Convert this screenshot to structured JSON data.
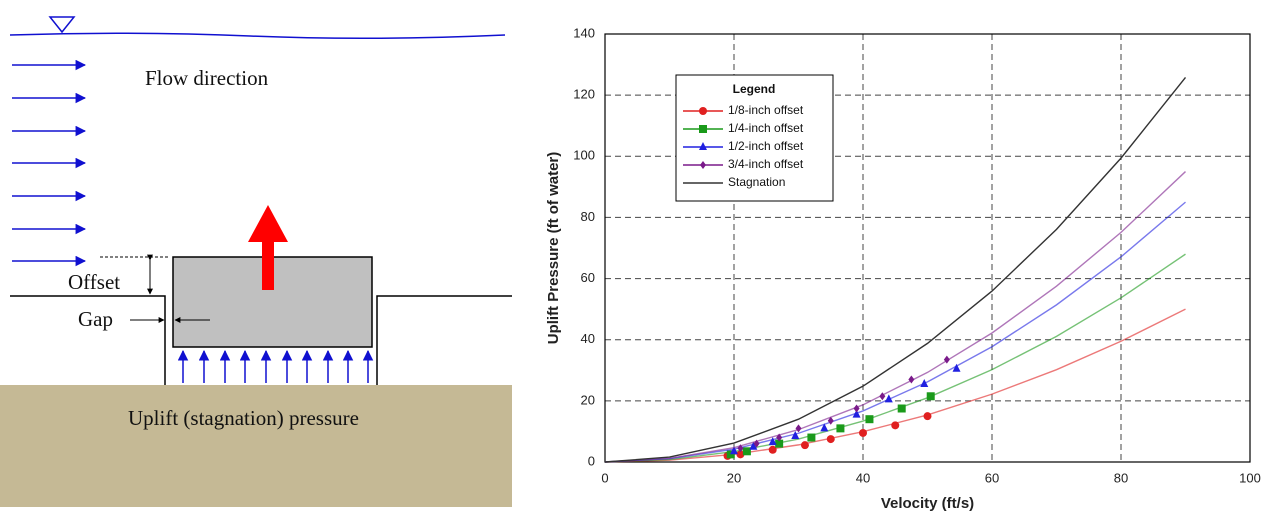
{
  "diagram": {
    "labels": {
      "flow": "Flow direction",
      "offset": "Offset",
      "gap": "Gap",
      "pressure": "Uplift (stagnation) pressure"
    }
  },
  "chart_data": {
    "type": "line",
    "x_label": "Velocity (ft/s)",
    "y_label": "Uplift Pressure (ft of water)",
    "legend_title": "Legend",
    "legend": "upper left",
    "grid": true,
    "xlim": [
      0,
      100
    ],
    "xticks": [
      0,
      20,
      40,
      60,
      80,
      100
    ],
    "ylim": [
      0,
      140
    ],
    "yticks": [
      0,
      20,
      40,
      60,
      80,
      100,
      120,
      140
    ],
    "x": [
      0,
      10,
      20,
      30,
      40,
      50,
      60,
      70,
      80,
      90
    ],
    "series": [
      {
        "name": "1/8-inch offset",
        "color": "#e02020",
        "marker": "circle",
        "values": [
          0,
          0.6,
          2.5,
          5.6,
          9.9,
          15.4,
          22.2,
          30.2,
          39.5,
          50
        ],
        "points": {
          "x": [
            19,
            21,
            26,
            31,
            35,
            40,
            45,
            50
          ],
          "values": [
            2,
            2.5,
            4,
            5.5,
            7.5,
            9.5,
            12,
            15
          ]
        }
      },
      {
        "name": "1/4-inch offset",
        "color": "#1a9a1a",
        "marker": "square",
        "values": [
          0,
          0.8,
          3.4,
          7.5,
          13.4,
          21,
          30.2,
          41.1,
          53.7,
          68
        ],
        "points": {
          "x": [
            19.5,
            22,
            27,
            32,
            36.5,
            41,
            46,
            50.5
          ],
          "values": [
            2.5,
            3.5,
            6,
            8,
            11,
            14,
            17.5,
            21.5
          ]
        }
      },
      {
        "name": "1/2-inch offset",
        "color": "#2020e0",
        "marker": "triangle",
        "values": [
          0,
          1.1,
          4.2,
          9.4,
          16.7,
          26.2,
          37.7,
          51.4,
          67.1,
          85
        ],
        "points": {
          "x": [
            20,
            23,
            26,
            29.5,
            34,
            39,
            44,
            49.5,
            54.5
          ],
          "values": [
            3.5,
            5,
            6.5,
            8.5,
            11,
            15.5,
            20.5,
            25.5,
            30.5
          ]
        }
      },
      {
        "name": "3/4-inch offset",
        "color": "#7a1a8a",
        "marker": "diamond",
        "values": [
          0,
          1.2,
          4.7,
          10.6,
          18.7,
          29.3,
          42.2,
          57.5,
          75.1,
          95
        ],
        "points": {
          "x": [
            21,
            23.5,
            27,
            30,
            35,
            39,
            43,
            47.5,
            53
          ],
          "values": [
            4.5,
            6,
            8,
            11,
            13.5,
            17.5,
            21.5,
            27,
            33.5
          ]
        }
      },
      {
        "name": "Stagnation",
        "color": "#333333",
        "marker": "none",
        "values": [
          0,
          1.6,
          6.2,
          14,
          24.8,
          38.8,
          55.9,
          76.1,
          99.4,
          125.8
        ]
      }
    ]
  }
}
